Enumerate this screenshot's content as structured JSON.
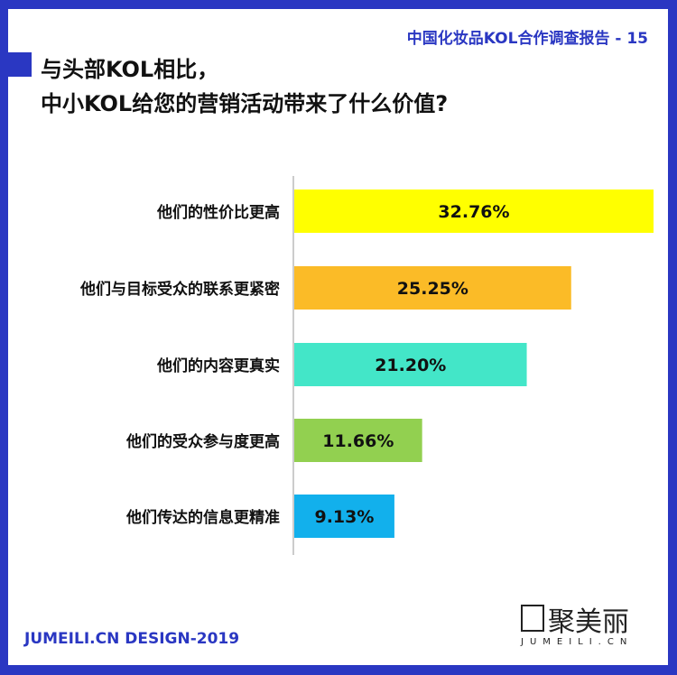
{
  "header": {
    "report": "中国化妆品KOL合作调查报告 - 15"
  },
  "title": {
    "line1": "与头部KOL相比，",
    "line2": "中小KOL给您的营销活动带来了什么价值?"
  },
  "footer": {
    "credit": "JUMEILI.CN DESIGN-2019"
  },
  "logo": {
    "name": "聚美丽",
    "sub": "JUMEILI.CN"
  },
  "colors": {
    "frame": "#2a37c2"
  },
  "chart_data": {
    "type": "bar",
    "orientation": "horizontal",
    "categories": [
      "他们的性价比更高",
      "他们与目标受众的联系更紧密",
      "他们的内容更真实",
      "他们的受众参与度更高",
      "他们传达的信息更精准"
    ],
    "values": [
      32.76,
      25.25,
      21.2,
      11.66,
      9.13
    ],
    "labels": [
      "32.76%",
      "25.25%",
      "21.20%",
      "11.66%",
      "9.13%"
    ],
    "colors": [
      "#ffff00",
      "#fbbb27",
      "#43e6c8",
      "#92d050",
      "#12b0ec"
    ],
    "xlim": [
      0,
      33
    ],
    "grid": false
  }
}
